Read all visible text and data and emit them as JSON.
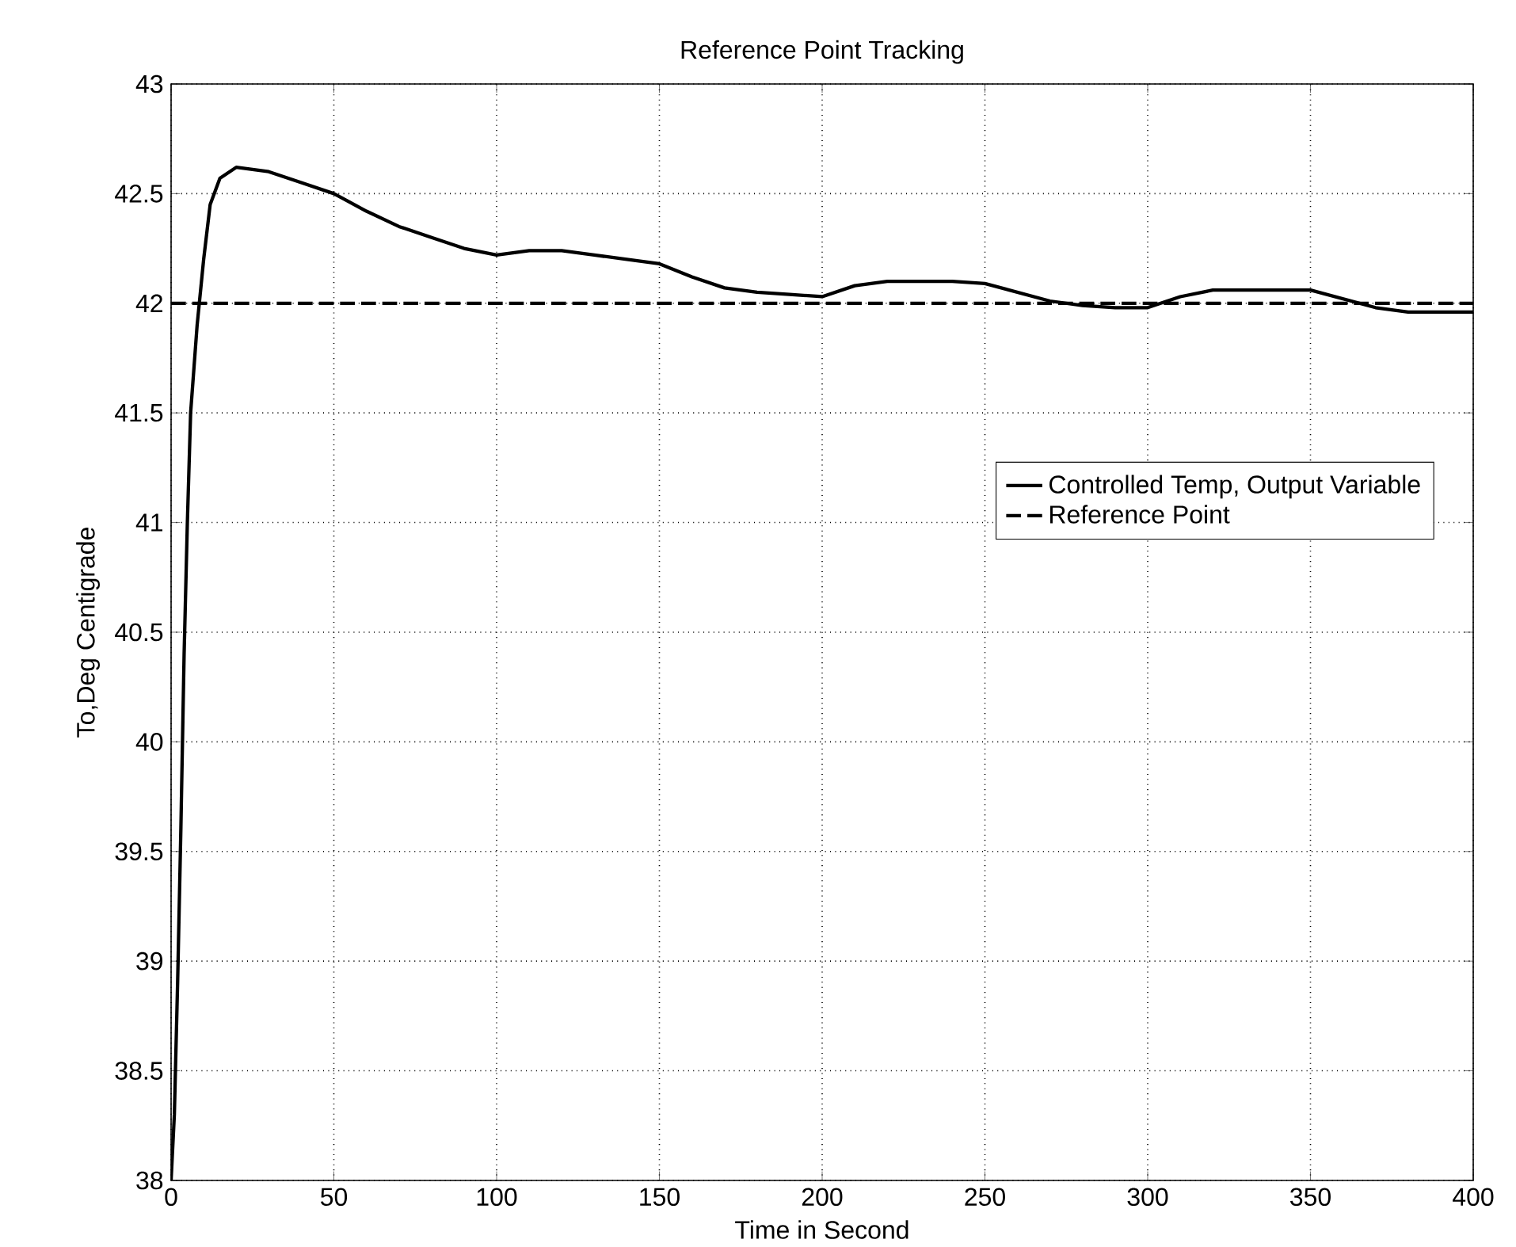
{
  "chart_data": {
    "type": "line",
    "title": "Reference Point Tracking",
    "xlabel": "Time in Second",
    "ylabel": "To,Deg Centigrade",
    "xlim": [
      0,
      400
    ],
    "ylim": [
      38,
      43
    ],
    "xticks": [
      0,
      50,
      100,
      150,
      200,
      250,
      300,
      350,
      400
    ],
    "yticks": [
      38,
      38.5,
      39,
      39.5,
      40,
      40.5,
      41,
      41.5,
      42,
      42.5,
      43
    ],
    "grid": true,
    "legend": "right",
    "series": [
      {
        "name": "Controlled Temp, Output Variable",
        "color": "#000000",
        "line_style": "solid",
        "x": [
          0,
          1,
          2,
          3,
          4,
          5,
          6,
          8,
          10,
          12,
          15,
          20,
          30,
          40,
          50,
          60,
          70,
          80,
          90,
          100,
          110,
          120,
          130,
          140,
          150,
          160,
          170,
          180,
          190,
          200,
          210,
          220,
          240,
          250,
          260,
          270,
          280,
          290,
          300,
          310,
          320,
          340,
          350,
          360,
          370,
          380,
          400
        ],
        "values": [
          38,
          38.3,
          38.9,
          39.6,
          40.4,
          41.0,
          41.5,
          41.9,
          42.2,
          42.45,
          42.57,
          42.62,
          42.6,
          42.55,
          42.5,
          42.42,
          42.35,
          42.3,
          42.25,
          42.22,
          42.24,
          42.24,
          42.22,
          42.2,
          42.18,
          42.12,
          42.07,
          42.05,
          42.04,
          42.03,
          42.08,
          42.1,
          42.1,
          42.09,
          42.05,
          42.01,
          41.99,
          41.98,
          41.98,
          42.03,
          42.06,
          42.06,
          42.06,
          42.02,
          41.98,
          41.96,
          41.96
        ]
      }
    ],
    "ref_lines": [
      {
        "axis": "y",
        "value": 42,
        "label": "Reference Point",
        "color": "#000000",
        "line_style": "dashed"
      }
    ]
  }
}
